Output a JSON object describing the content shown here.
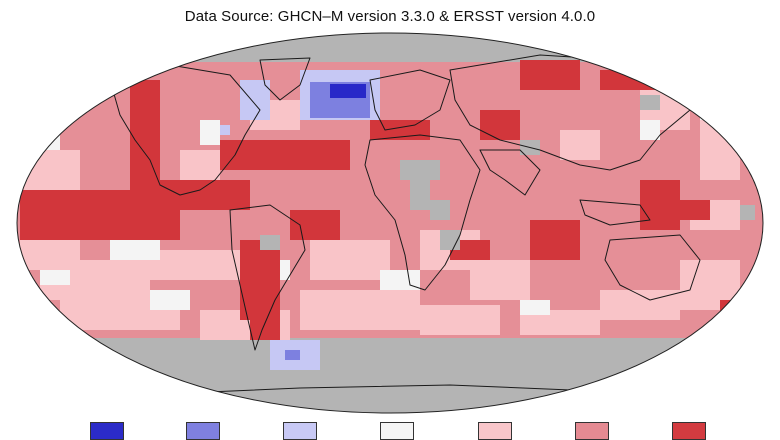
{
  "map": {
    "subtitle": "Data Source: GHCN–M version 3.3.0 & ERSST version 4.0.0",
    "colors": {
      "no_data": "#b4b4b4",
      "ocean_base": "#e58f97",
      "strong_warm": "#d2363b",
      "moderate_warm": "#e47d85",
      "light_warm": "#f9c4c8",
      "neutral": "#f4f4f4",
      "light_cool": "#c6c8f4",
      "moderate_cool": "#7d80e0",
      "strong_cool": "#2828c8",
      "coastline": "#1a1a1a"
    }
  },
  "legend": {
    "swatches": [
      {
        "color": "#2b2bc8"
      },
      {
        "color": "#7f80e0"
      },
      {
        "color": "#c8c9f5"
      },
      {
        "color": "#f5f5f5"
      },
      {
        "color": "#f9c6ca"
      },
      {
        "color": "#e58a92"
      },
      {
        "color": "#d33b40"
      }
    ]
  }
}
